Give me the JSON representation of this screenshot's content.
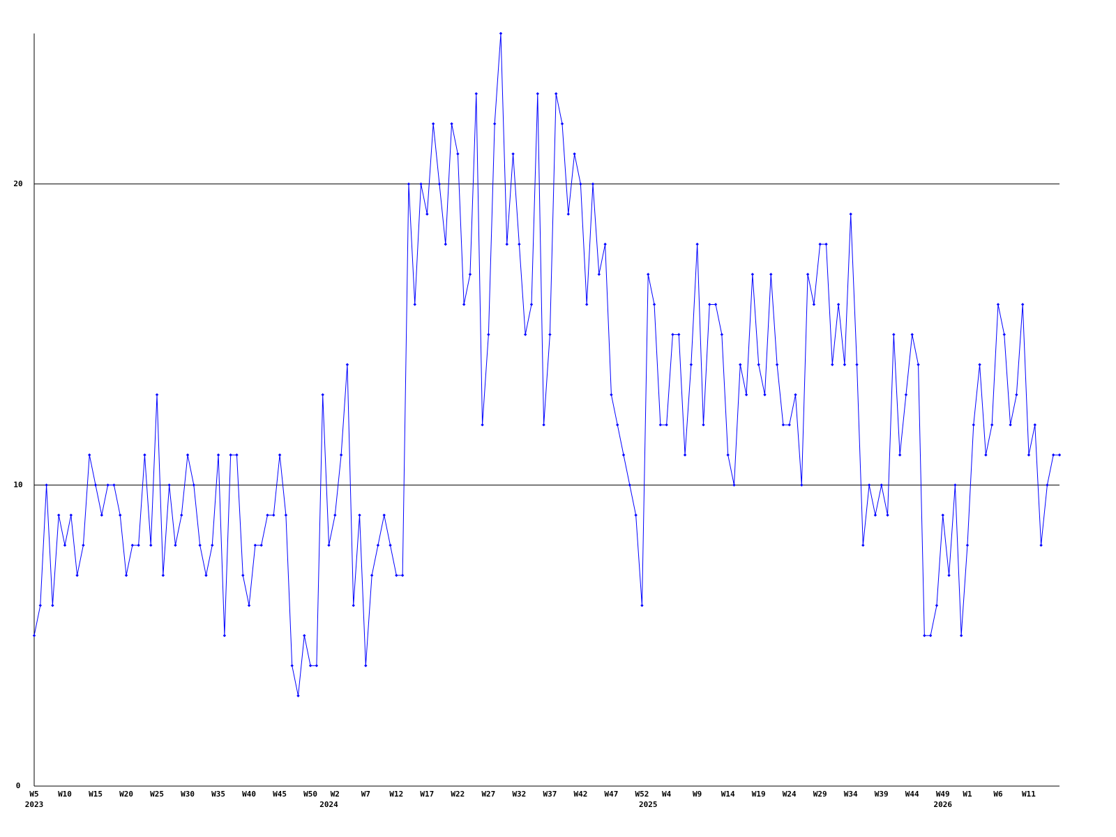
{
  "chart_data": {
    "type": "line",
    "categories": [
      "W5",
      null,
      null,
      null,
      null,
      "W10",
      null,
      null,
      null,
      null,
      "W15",
      null,
      null,
      null,
      null,
      "W20",
      null,
      null,
      null,
      null,
      "W25",
      null,
      null,
      null,
      null,
      "W30",
      null,
      null,
      null,
      null,
      "W35",
      null,
      null,
      null,
      null,
      "W40",
      null,
      null,
      null,
      null,
      "W45",
      null,
      null,
      null,
      null,
      "W50",
      null,
      null,
      null,
      "W2",
      null,
      null,
      null,
      null,
      "W7",
      null,
      null,
      null,
      null,
      "W12",
      null,
      null,
      null,
      null,
      "W17",
      null,
      null,
      null,
      null,
      "W22",
      null,
      null,
      null,
      null,
      "W27",
      null,
      null,
      null,
      null,
      "W32",
      null,
      null,
      null,
      null,
      "W37",
      null,
      null,
      null,
      null,
      "W42",
      null,
      null,
      null,
      null,
      "W47",
      null,
      null,
      null,
      null,
      "W52",
      null,
      null,
      null,
      "W4",
      null,
      null,
      null,
      null,
      "W9",
      null,
      null,
      null,
      null,
      "W14",
      null,
      null,
      null,
      null,
      "W19",
      null,
      null,
      null,
      null,
      "W24",
      null,
      null,
      null,
      null,
      "W29",
      null,
      null,
      null,
      null,
      "W34",
      null,
      null,
      null,
      null,
      "W39",
      null,
      null,
      null,
      null,
      "W44",
      null,
      null,
      null,
      null,
      "W49",
      null,
      null,
      null,
      "W1",
      null,
      null,
      null,
      null,
      "W6",
      null,
      null,
      null,
      null,
      "W11",
      null,
      null,
      null,
      null,
      null
    ],
    "years": [
      "2023",
      null,
      null,
      null,
      null,
      null,
      null,
      null,
      null,
      null,
      null,
      null,
      null,
      null,
      null,
      null,
      null,
      null,
      null,
      null,
      null,
      null,
      null,
      null,
      null,
      null,
      null,
      null,
      null,
      null,
      null,
      null,
      null,
      null,
      null,
      null,
      null,
      null,
      null,
      null,
      null,
      null,
      null,
      null,
      null,
      null,
      null,
      null,
      "2024",
      null,
      null,
      null,
      null,
      null,
      null,
      null,
      null,
      null,
      null,
      null,
      null,
      null,
      null,
      null,
      null,
      null,
      null,
      null,
      null,
      null,
      null,
      null,
      null,
      null,
      null,
      null,
      null,
      null,
      null,
      null,
      null,
      null,
      null,
      null,
      null,
      null,
      null,
      null,
      null,
      null,
      null,
      null,
      null,
      null,
      null,
      null,
      null,
      null,
      null,
      null,
      "2025",
      null,
      null,
      null,
      null,
      null,
      null,
      null,
      null,
      null,
      null,
      null,
      null,
      null,
      null,
      null,
      null,
      null,
      null,
      null,
      null,
      null,
      null,
      null,
      null,
      null,
      null,
      null,
      null,
      null,
      null,
      null,
      null,
      null,
      null,
      null,
      null,
      null,
      null,
      null,
      null,
      null,
      null,
      null,
      null,
      null,
      null,
      null,
      "2026",
      null,
      null,
      null,
      null,
      null,
      null,
      null,
      null,
      null,
      null,
      null,
      null,
      null,
      null,
      null
    ],
    "series": [
      {
        "color": "#0000ff",
        "values": [
          5,
          6,
          10,
          6,
          9,
          8,
          9,
          7,
          8,
          11,
          10,
          9,
          10,
          10,
          9,
          7,
          8,
          8,
          11,
          8,
          13,
          7,
          10,
          8,
          9,
          11,
          10,
          8,
          7,
          8,
          11,
          5,
          11,
          11,
          7,
          6,
          8,
          8,
          9,
          9,
          11,
          9,
          4,
          3,
          5,
          4,
          4,
          13,
          8,
          9,
          11,
          14,
          6,
          9,
          4,
          7,
          8,
          9,
          8,
          7,
          7,
          20,
          16,
          20,
          19,
          22,
          20,
          18,
          22,
          21,
          16,
          17,
          23,
          12,
          15,
          22,
          25,
          18,
          21,
          18,
          15,
          16,
          23,
          12,
          15,
          23,
          22,
          19,
          21,
          20,
          16,
          20,
          17,
          18,
          13,
          12,
          11,
          10,
          9,
          6,
          17,
          16,
          12,
          12,
          15,
          15,
          11,
          14,
          18,
          12,
          16,
          16,
          15,
          11,
          10,
          14,
          13,
          17,
          14,
          13,
          17,
          14,
          12,
          12,
          13,
          10,
          17,
          16,
          18,
          18,
          14,
          16,
          14,
          19,
          14,
          8,
          10,
          9,
          10,
          9,
          15,
          11,
          13,
          15,
          14,
          5,
          5,
          6,
          9,
          7,
          10,
          5,
          8,
          12,
          14,
          11,
          12,
          16,
          15,
          12,
          13,
          16,
          11,
          12,
          8,
          10,
          11,
          11
        ]
      }
    ],
    "ylim": [
      0,
      25
    ],
    "yticks": [
      0,
      10,
      20
    ],
    "grid": true
  }
}
